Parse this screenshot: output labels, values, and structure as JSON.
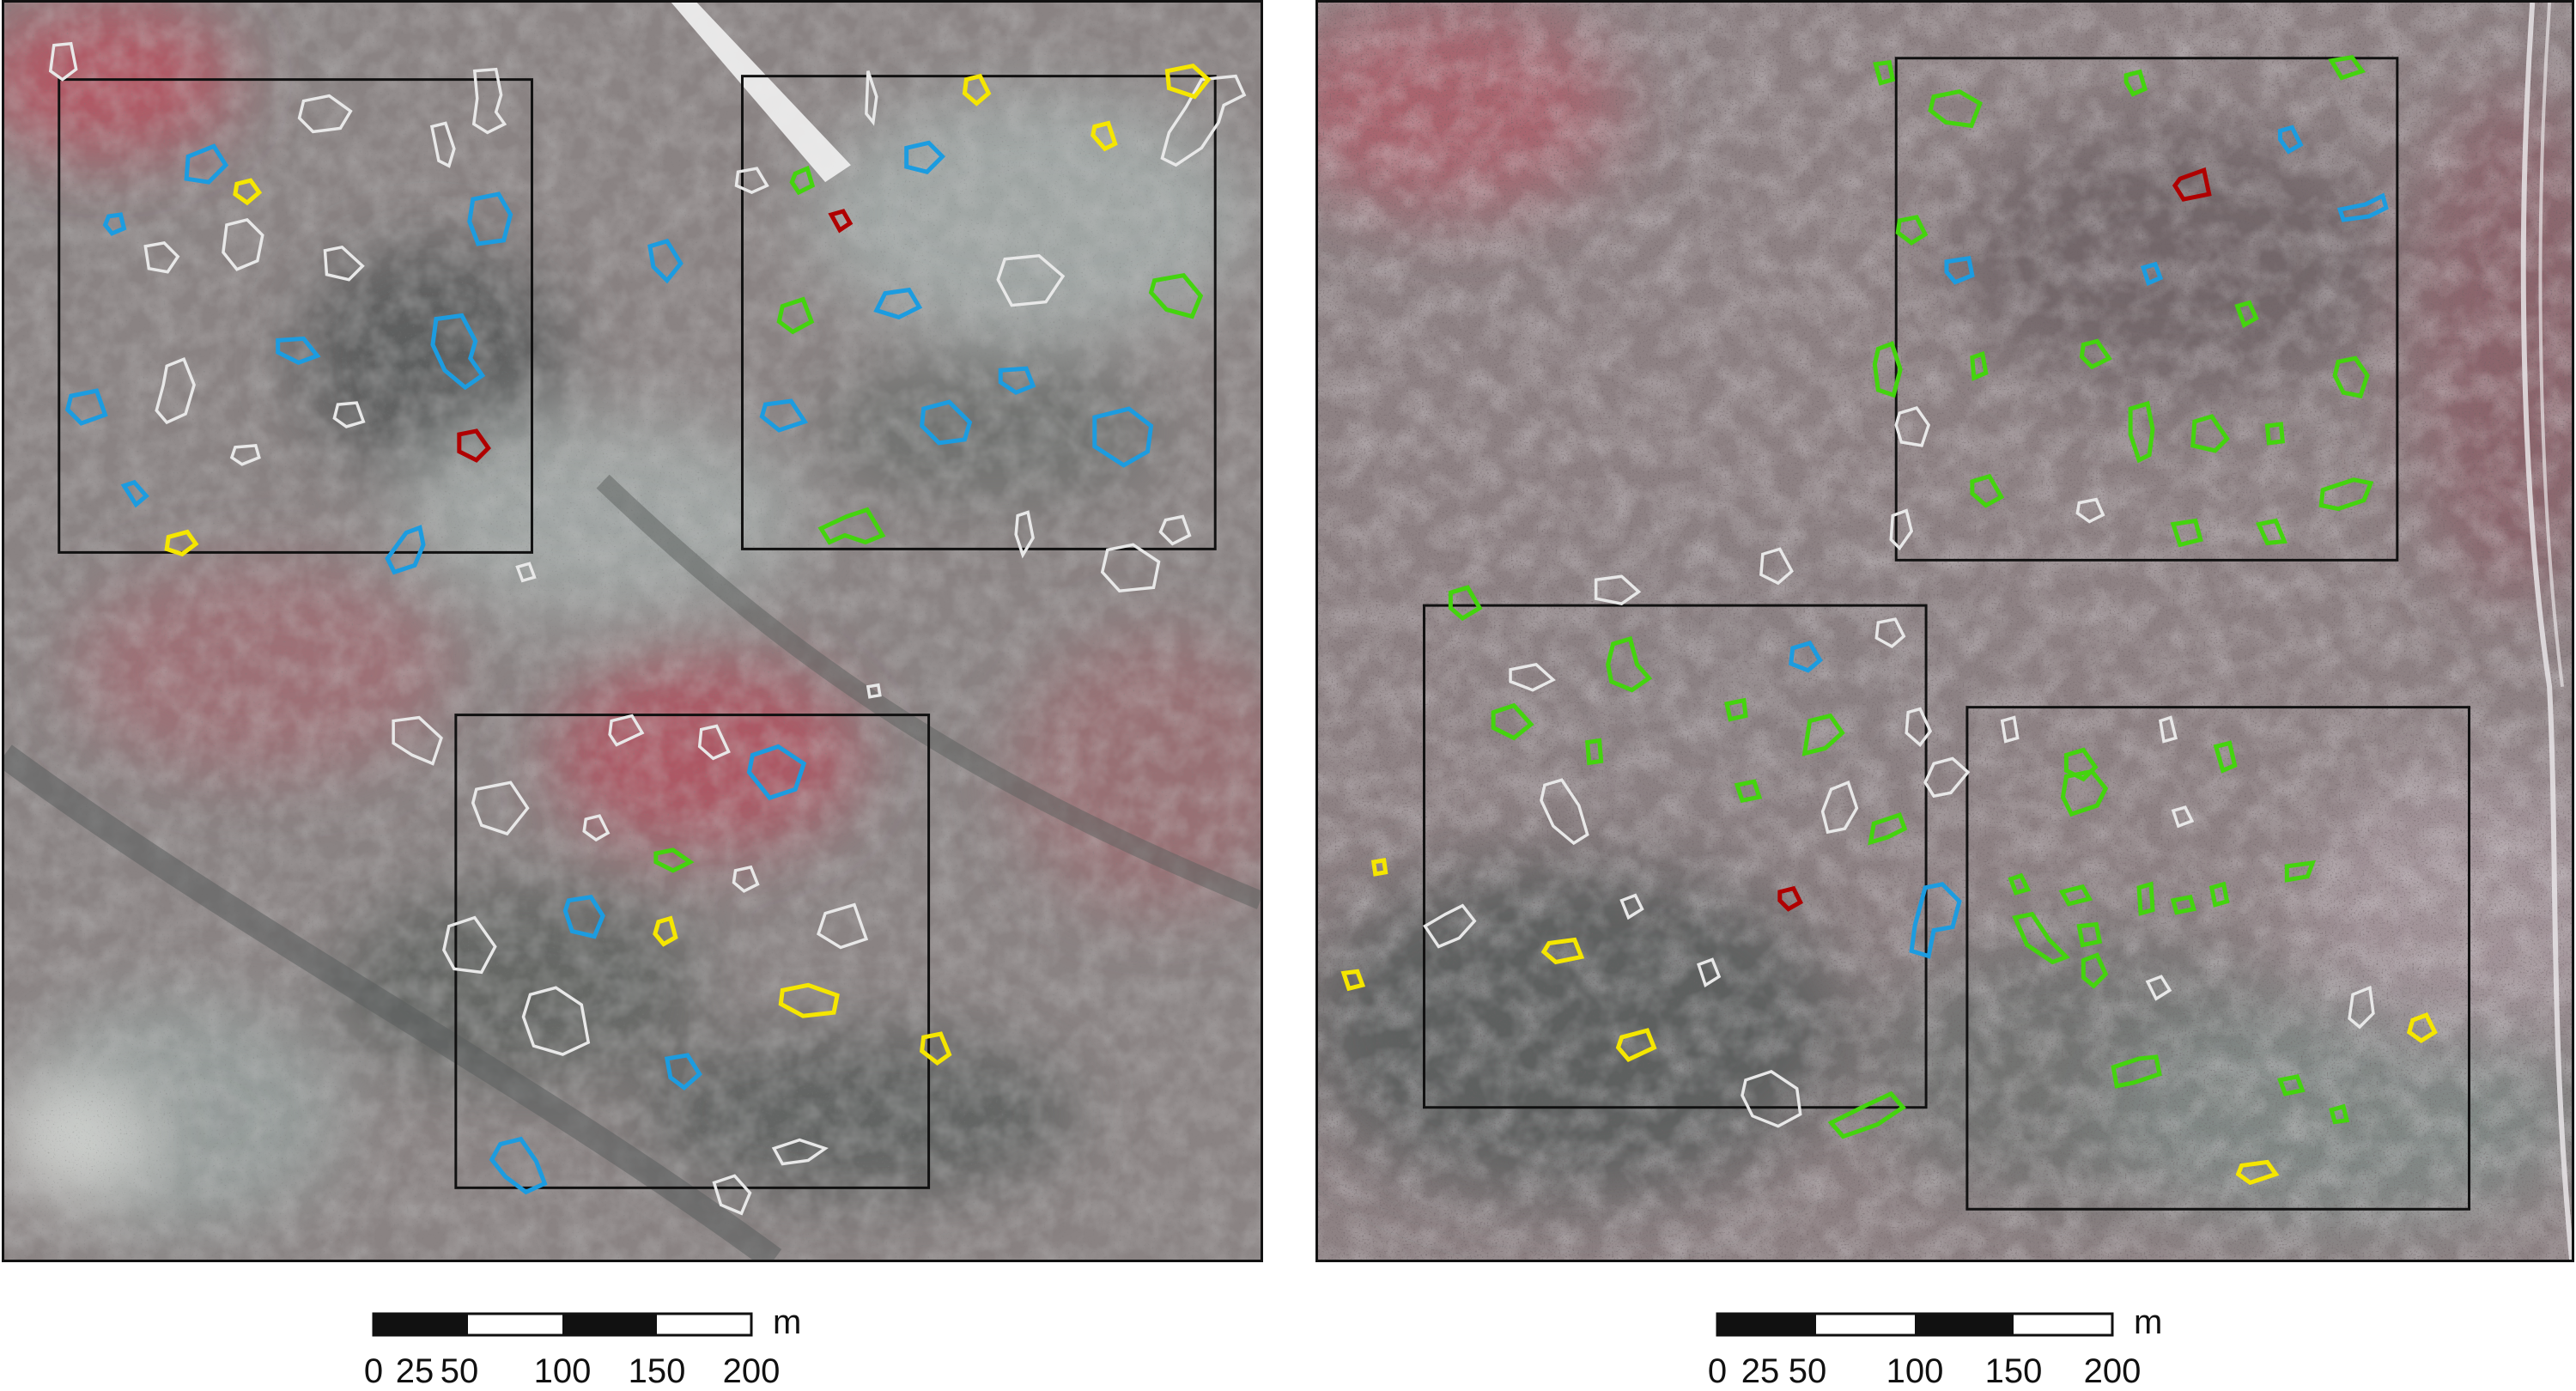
{
  "colors": {
    "red_class": "#b00000",
    "yellow_class": "#f5e600",
    "green_class": "#44d40e",
    "blue_class": "#1c9ce0",
    "white_class": "#e8e8e8",
    "plot_frame": "#111111",
    "imagery_base": "#8a8282",
    "imagery_red": "#c8485a",
    "imagery_light": "#c6d2d0",
    "imagery_dark": "#4d5150"
  },
  "panels": [
    {
      "id": "left",
      "scalebar": {
        "unit": "m",
        "ticks": [
          "0",
          "25",
          "50",
          "100",
          "150",
          "200"
        ]
      }
    },
    {
      "id": "right",
      "scalebar": {
        "unit": "m",
        "ticks": [
          "0",
          "25",
          "50",
          "100",
          "150",
          "200"
        ]
      }
    }
  ]
}
